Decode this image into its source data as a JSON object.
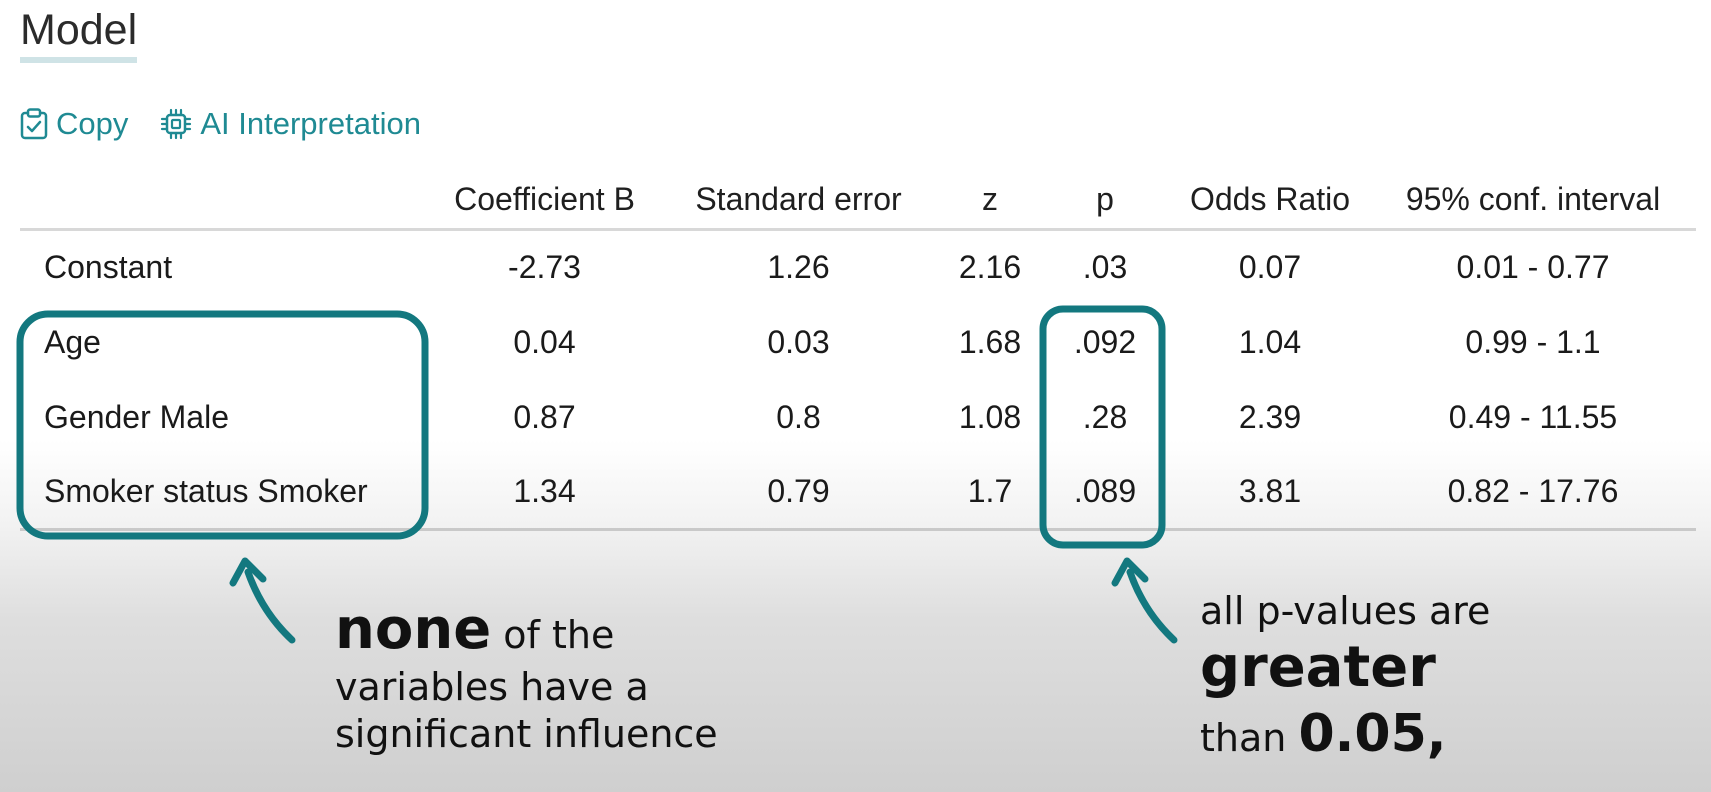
{
  "header": {
    "title": "Model"
  },
  "toolbar": {
    "copy_label": "Copy",
    "ai_label": "AI Interpretation"
  },
  "table": {
    "columns": [
      "",
      "Coefficient B",
      "Standard error",
      "z",
      "p",
      "Odds Ratio",
      "95% conf. interval"
    ],
    "rows": [
      [
        "Constant",
        "-2.73",
        "1.26",
        "2.16",
        ".03",
        "0.07",
        "0.01 - 0.77"
      ],
      [
        "Age",
        "0.04",
        "0.03",
        "1.68",
        ".092",
        "1.04",
        "0.99 - 1.1"
      ],
      [
        "Gender Male",
        "0.87",
        "0.8",
        "1.08",
        ".28",
        "2.39",
        "0.49 - 11.55"
      ],
      [
        "Smoker status Smoker",
        "1.34",
        "0.79",
        "1.7",
        ".089",
        "3.81",
        "0.82 - 17.76"
      ]
    ]
  },
  "annotations": {
    "left": {
      "bold": "none",
      "rest1": "of the",
      "line2": "variables have a",
      "line3": "significant influence"
    },
    "right": {
      "line1": "all p-values are",
      "bold": "greater",
      "than": "than",
      "value": "0.05",
      "comma": ","
    }
  },
  "colors": {
    "accent": "#1f8a93",
    "annotation": "#13787f"
  },
  "icons": {
    "copy": "clipboard-check-icon",
    "ai": "chip-icon",
    "arrow": "curved-arrow-icon"
  }
}
